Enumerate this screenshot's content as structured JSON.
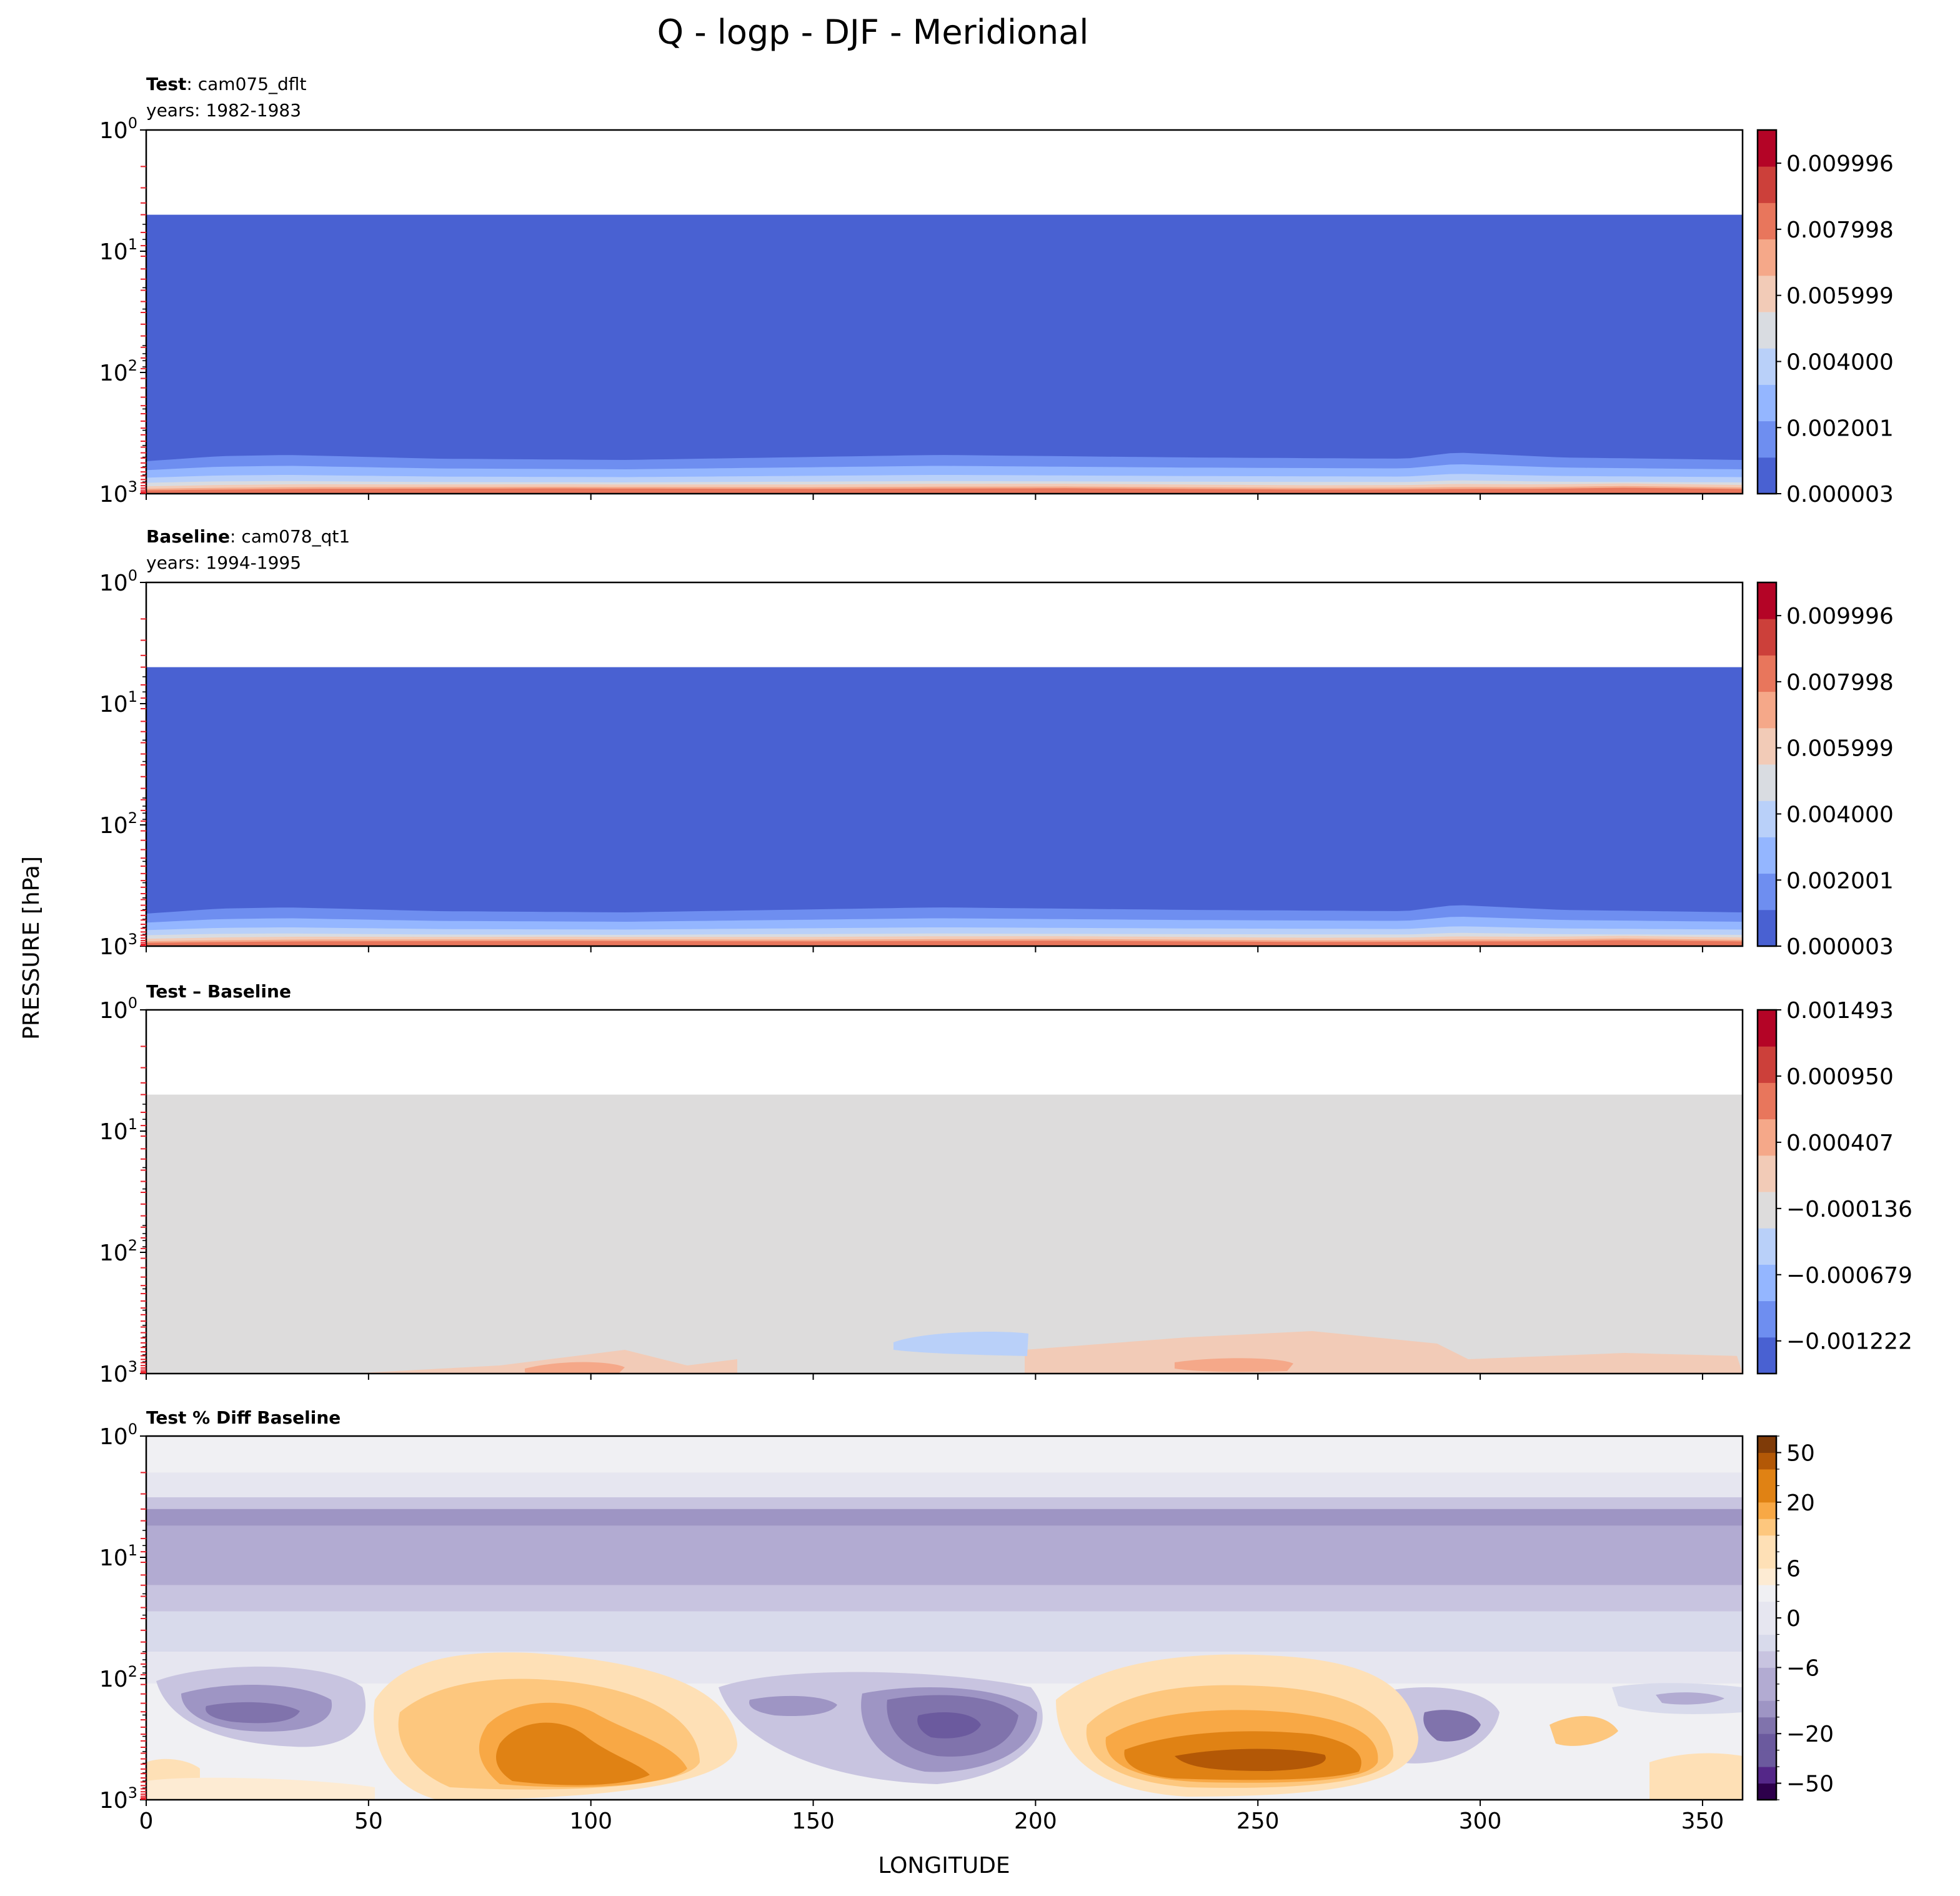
{
  "chart_data": {
    "type": "heatmap",
    "title": "Q - logp - DJF - Meridional",
    "xlabel": "LONGITUDE",
    "ylabel": "PRESSURE [hPa]",
    "xlim": [
      0,
      359
    ],
    "ylim": [
      1000,
      1
    ],
    "y_scale": "log",
    "x_ticks": [
      "0",
      "50",
      "100",
      "150",
      "200",
      "250",
      "300",
      "350"
    ],
    "x_tick_values": [
      0,
      50,
      100,
      150,
      200,
      250,
      300,
      350
    ],
    "y_ticks": [
      {
        "base": "10",
        "exp": "0"
      },
      {
        "base": "10",
        "exp": "1"
      },
      {
        "base": "10",
        "exp": "2"
      },
      {
        "base": "10",
        "exp": "3"
      }
    ],
    "y_tick_values": [
      1,
      10,
      100,
      1000
    ],
    "level_marker_color": "#e8202a",
    "panels": [
      {
        "id": "test",
        "title_bold": "Test",
        "title_rest": ": cam075_dflt",
        "subtitle": "years: 1982-1983",
        "colormap": "coolwarm",
        "colors": [
          "#4961d2",
          "#6e8ef0",
          "#94b6ff",
          "#b9d0f9",
          "#d9dce1",
          "#f2cbb7",
          "#f5a889",
          "#e8765c",
          "#cc403a",
          "#b40426"
        ],
        "colorbar_labels": [
          "0.009996",
          "0.007998",
          "0.005999",
          "0.004000",
          "0.002001",
          "0.000003"
        ],
        "colorbar_values": [
          0.009996,
          0.007998,
          0.005999,
          0.004,
          0.002001,
          3e-06
        ],
        "colorbar_range": [
          3e-06,
          0.011
        ]
      },
      {
        "id": "baseline",
        "title_bold": "Baseline",
        "title_rest": ": cam078_qt1",
        "subtitle": "years: 1994-1995",
        "colormap": "coolwarm",
        "colors": [
          "#4961d2",
          "#6e8ef0",
          "#94b6ff",
          "#b9d0f9",
          "#d9dce1",
          "#f2cbb7",
          "#f5a889",
          "#e8765c",
          "#cc403a",
          "#b40426"
        ],
        "colorbar_labels": [
          "0.009996",
          "0.007998",
          "0.005999",
          "0.004000",
          "0.002001",
          "0.000003"
        ],
        "colorbar_values": [
          0.009996,
          0.007998,
          0.005999,
          0.004,
          0.002001,
          3e-06
        ],
        "colorbar_range": [
          3e-06,
          0.011
        ]
      },
      {
        "id": "diff",
        "title_bold": "Test – Baseline",
        "title_rest": "",
        "subtitle": "",
        "colormap": "coolwarm",
        "colors": [
          "#4961d2",
          "#6e8ef0",
          "#94b6ff",
          "#b9d0f9",
          "#dddcdc",
          "#f2cbb7",
          "#f5a889",
          "#e8765c",
          "#cc403a",
          "#b40426"
        ],
        "colorbar_labels": [
          "0.001493",
          "0.000950",
          "0.000407",
          "−0.000136",
          "−0.000679",
          "−0.001222"
        ],
        "colorbar_values": [
          0.001493,
          0.00095,
          0.000407,
          -0.000136,
          -0.000679,
          -0.001222
        ],
        "colorbar_range": [
          -0.00149,
          0.001493
        ]
      },
      {
        "id": "pctdiff",
        "title_bold": "Test % Diff Baseline",
        "title_rest": "",
        "subtitle": "",
        "colormap": "PuOr_r",
        "colors": [
          "#2d004b",
          "#542788",
          "#6b5a9e",
          "#8073ac",
          "#9e95c4",
          "#b2abd2",
          "#c8c4e0",
          "#d8daeb",
          "#e6e6f0",
          "#f0f0f3",
          "#fdebd3",
          "#fee0b6",
          "#fdc77e",
          "#f8a845",
          "#e08214",
          "#b35806",
          "#7f3b08"
        ],
        "colorbar_labels": [
          "50",
          "20",
          "6",
          "0",
          "−6",
          "−20",
          "−50"
        ],
        "colorbar_values": [
          50,
          20,
          6,
          0,
          -6,
          -20,
          -50
        ],
        "colorbar_levels": [
          -80,
          -50,
          -40,
          -30,
          -20,
          -15,
          -10,
          -8,
          -6,
          -4,
          -2,
          0,
          2,
          4,
          6,
          8,
          10,
          15,
          20,
          30,
          40,
          50,
          80
        ]
      }
    ]
  }
}
